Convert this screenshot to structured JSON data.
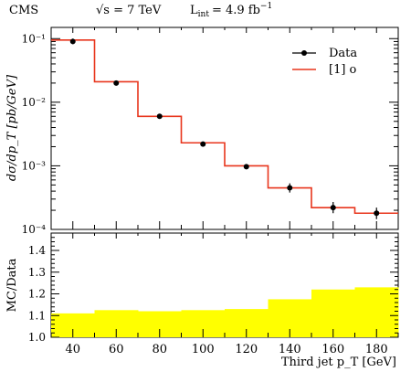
{
  "header": {
    "experiment": "CMS",
    "energy": "√s = 7 TeV",
    "lumi": "L",
    "lumi_sub": "int",
    "lumi_value": "= 4.9 fb",
    "lumi_exp": "−1"
  },
  "legend": {
    "data_label": "Data",
    "mc_label": "[1] o"
  },
  "colors": {
    "mc_line": "#e8351c",
    "ratio_fill": "#ffff00",
    "data_marker": "#000000"
  },
  "chart_data": [
    {
      "type": "line",
      "panel": "main",
      "ylabel": "dσ/dp_T [pb/GeV]",
      "yscale": "log",
      "xlim": [
        30,
        190
      ],
      "ylim": [
        0.0001,
        0.15
      ],
      "y_ticks": [
        "10⁻⁴",
        "10⁻³",
        "10⁻²",
        "10⁻¹"
      ],
      "grid": false,
      "legend_position": "top-right",
      "series": [
        {
          "name": "Data",
          "style": "points-with-errors",
          "x": [
            40,
            60,
            80,
            100,
            120,
            140,
            160,
            180
          ],
          "y": [
            0.09,
            0.02,
            0.006,
            0.0022,
            0.00097,
            0.00045,
            0.00022,
            0.00018
          ],
          "yerr_low": [
            0.082,
            0.0185,
            0.0056,
            0.00205,
            0.0009,
            0.00038,
            0.00018,
            0.000145
          ],
          "yerr_high": [
            0.1,
            0.0218,
            0.0065,
            0.0024,
            0.00105,
            0.00053,
            0.00027,
            0.00022
          ]
        },
        {
          "name": "[1] o",
          "style": "step",
          "bin_edges": [
            30,
            50,
            70,
            90,
            110,
            130,
            150,
            170,
            190
          ],
          "values": [
            0.095,
            0.021,
            0.006,
            0.0023,
            0.001,
            0.00045,
            0.00022,
            0.00018
          ]
        }
      ]
    },
    {
      "type": "area",
      "panel": "ratio",
      "xlabel": "Third jet p_T [GeV]",
      "ylabel": "MC/Data",
      "xlim": [
        30,
        190
      ],
      "ylim": [
        1.0,
        1.48
      ],
      "x_ticks": [
        40,
        60,
        80,
        100,
        120,
        140,
        160,
        180
      ],
      "y_ticks": [
        1.0,
        1.1,
        1.2,
        1.3,
        1.4
      ],
      "grid": false,
      "bin_edges": [
        30,
        50,
        70,
        90,
        110,
        130,
        150,
        170,
        190
      ],
      "values": [
        1.11,
        1.125,
        1.12,
        1.125,
        1.13,
        1.175,
        1.22,
        1.23
      ]
    }
  ]
}
